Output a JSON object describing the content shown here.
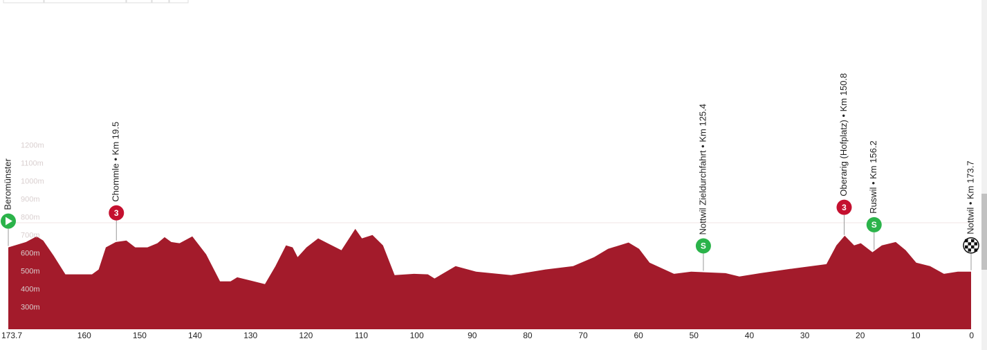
{
  "chart_data": {
    "type": "area",
    "color": "#a31b2b",
    "xlim": [
      173.7,
      0
    ],
    "xticks": [
      173.7,
      160,
      150,
      140,
      130,
      120,
      110,
      100,
      90,
      80,
      70,
      60,
      50,
      40,
      30,
      20,
      10,
      0
    ],
    "ylim": [
      180,
      2010
    ],
    "yticks": [
      {
        "value": 300,
        "label": "300m"
      },
      {
        "value": 400,
        "label": "400m"
      },
      {
        "value": 500,
        "label": "500m"
      },
      {
        "value": 600,
        "label": "600m"
      },
      {
        "value": 700,
        "label": "700m"
      },
      {
        "value": 800,
        "label": "800m"
      },
      {
        "value": 900,
        "label": "900m"
      },
      {
        "value": 1000,
        "label": "1000m"
      },
      {
        "value": 1100,
        "label": "1100m"
      },
      {
        "value": 1200,
        "label": "1200m"
      }
    ],
    "x": [
      173.7,
      170.5,
      168.6,
      167.4,
      165.5,
      163.4,
      161.8,
      158.6,
      157.4,
      156.1,
      154.3,
      152.4,
      150.8,
      148.6,
      146.8,
      145.5,
      144.3,
      142.8,
      140.5,
      138,
      135.5,
      133.6,
      132.4,
      129.9,
      127.4,
      125.5,
      123.6,
      122.4,
      121.5,
      119.9,
      117.8,
      116.1,
      113.6,
      111.1,
      109.9,
      108,
      106.1,
      104,
      100.5,
      98,
      96.8,
      93,
      89.3,
      83,
      76.8,
      71.8,
      68,
      65.5,
      61.8,
      59.9,
      58,
      53.6,
      50.5,
      44.3,
      41.8,
      38,
      31.8,
      26.1,
      24.3,
      22.8,
      21.1,
      19.9,
      17.8,
      16.1,
      13.6,
      11.8,
      9.9,
      7.4,
      4.9,
      2.4,
      0
    ],
    "values": [
      635,
      665,
      696,
      673,
      588,
      485,
      485,
      485,
      512,
      635,
      665,
      673,
      635,
      635,
      658,
      692,
      665,
      658,
      696,
      596,
      446,
      446,
      469,
      450,
      431,
      531,
      646,
      635,
      581,
      635,
      685,
      658,
      619,
      738,
      685,
      704,
      646,
      481,
      488,
      485,
      462,
      531,
      500,
      481,
      512,
      531,
      581,
      627,
      662,
      627,
      550,
      488,
      500,
      492,
      473,
      492,
      519,
      542,
      646,
      700,
      646,
      658,
      608,
      646,
      665,
      619,
      550,
      531,
      488,
      500,
      500
    ],
    "markers": [
      {
        "label": "Beromünster",
        "x": 173.7,
        "kind": "start",
        "color": "#2bb34a"
      },
      {
        "label": "Chommle • Km 19.5",
        "x": 154.2,
        "kind": "climb",
        "icon_text": "3",
        "color": "#c4102f"
      },
      {
        "label": "Nottwil Zieldurchfahrt • Km 125.4",
        "x": 48.3,
        "kind": "sprint",
        "icon_text": "S",
        "color": "#2bb34a"
      },
      {
        "label": "Oberarig (Hofplatz) • Km 150.8",
        "x": 22.9,
        "kind": "climb",
        "icon_text": "3",
        "color": "#c4102f"
      },
      {
        "label": "Ruswil • Km 156.2",
        "x": 17.5,
        "kind": "sprint",
        "icon_text": "S",
        "color": "#2bb34a"
      },
      {
        "label": "Nottwil • Km 173.7",
        "x": 0,
        "kind": "finish",
        "color": "#111111"
      }
    ]
  }
}
